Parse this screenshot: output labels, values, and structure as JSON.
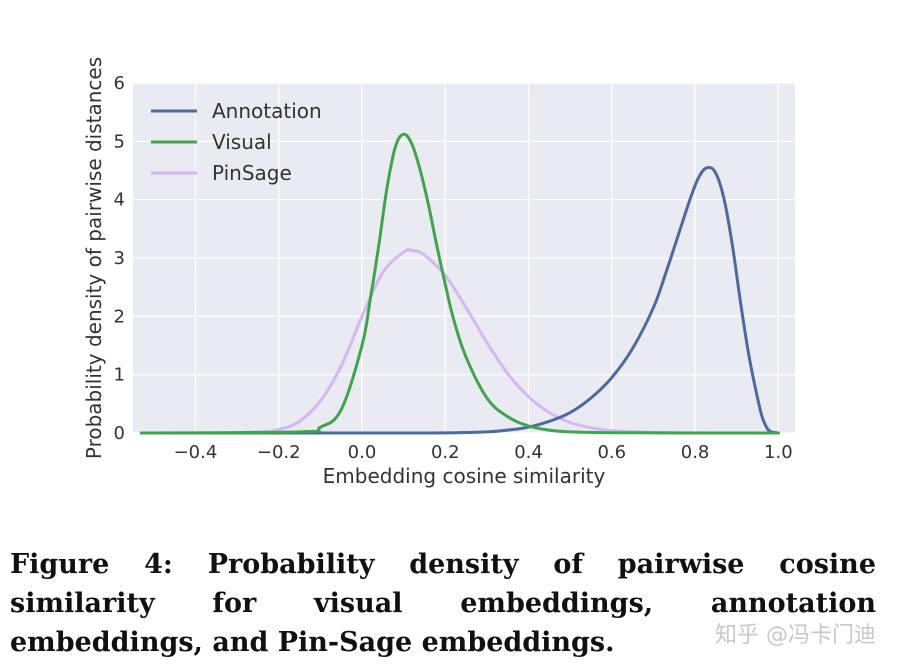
{
  "chart_data": {
    "type": "line",
    "xlabel": "Embedding cosine similarity",
    "ylabel": "Probability density of pairwise distances",
    "xlim": [
      -0.55,
      1.04
    ],
    "ylim": [
      0,
      6
    ],
    "xticks": [
      -0.4,
      -0.2,
      0.0,
      0.2,
      0.4,
      0.6,
      0.8,
      1.0
    ],
    "xtick_labels": [
      "−0.4",
      "−0.2",
      "0.0",
      "0.2",
      "0.4",
      "0.6",
      "0.8",
      "1.0"
    ],
    "yticks": [
      0,
      1,
      2,
      3,
      4,
      5,
      6
    ],
    "ytick_labels": [
      "0",
      "1",
      "2",
      "3",
      "4",
      "5",
      "6"
    ],
    "grid": true,
    "legend_position": "top-left",
    "series": [
      {
        "name": "Annotation",
        "color": "#4c6a9c",
        "x": [
          -0.53,
          0.0,
          0.2,
          0.3,
          0.35,
          0.4,
          0.45,
          0.5,
          0.55,
          0.6,
          0.65,
          0.7,
          0.73,
          0.76,
          0.79,
          0.81,
          0.83,
          0.85,
          0.87,
          0.89,
          0.91,
          0.93,
          0.95,
          0.96,
          0.97,
          0.98,
          1.0
        ],
        "y": [
          0,
          0,
          0.002,
          0.02,
          0.05,
          0.1,
          0.2,
          0.35,
          0.6,
          0.95,
          1.45,
          2.15,
          2.75,
          3.4,
          4.05,
          4.4,
          4.55,
          4.45,
          4.0,
          3.2,
          2.2,
          1.3,
          0.6,
          0.3,
          0.12,
          0.03,
          0.0
        ]
      },
      {
        "name": "Visual",
        "color": "#3fa54a",
        "x": [
          -0.53,
          -0.15,
          -0.1,
          -0.05,
          0.0,
          0.02,
          0.04,
          0.06,
          0.08,
          0.1,
          0.12,
          0.14,
          0.16,
          0.18,
          0.2,
          0.22,
          0.25,
          0.3,
          0.35,
          0.4,
          0.45,
          0.5,
          0.6,
          0.8,
          1.0
        ],
        "y": [
          0,
          0.02,
          0.1,
          0.4,
          1.5,
          2.3,
          3.2,
          4.2,
          4.9,
          5.12,
          4.95,
          4.5,
          3.9,
          3.2,
          2.55,
          1.95,
          1.3,
          0.6,
          0.28,
          0.12,
          0.05,
          0.02,
          0.005,
          0.0,
          0.0
        ]
      },
      {
        "name": "PinSage",
        "color": "#d6b6f5",
        "x": [
          -0.35,
          -0.25,
          -0.2,
          -0.15,
          -0.1,
          -0.05,
          0.0,
          0.05,
          0.1,
          0.12,
          0.15,
          0.2,
          0.25,
          0.3,
          0.35,
          0.4,
          0.45,
          0.5,
          0.55,
          0.6,
          0.7,
          0.8,
          0.86
        ],
        "y": [
          0.0,
          0.02,
          0.06,
          0.2,
          0.55,
          1.15,
          2.0,
          2.75,
          3.1,
          3.13,
          3.05,
          2.7,
          2.15,
          1.55,
          1.02,
          0.62,
          0.35,
          0.18,
          0.09,
          0.04,
          0.01,
          0.002,
          0.0
        ]
      }
    ]
  },
  "caption": {
    "text": "Figure 4: Probability density of pairwise cosine similarity for visual embeddings, annotation embeddings, and Pin-Sage embeddings."
  },
  "watermark": {
    "text": "知乎 @冯卡门迪"
  }
}
